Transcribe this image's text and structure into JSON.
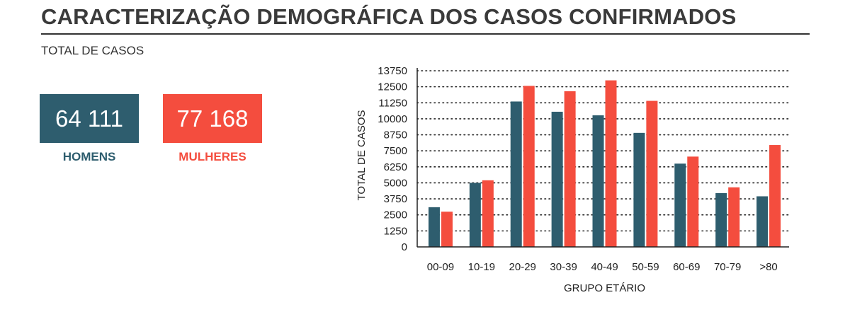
{
  "header": {
    "title": "CARACTERIZAÇÃO DEMOGRÁFICA DOS CASOS CONFIRMADOS",
    "subtitle": "TOTAL DE CASOS"
  },
  "totals": {
    "men": {
      "value": "64 111",
      "label": "HOMENS",
      "color": "#2e5d6e"
    },
    "women": {
      "value": "77 168",
      "label": "MULHERES",
      "color": "#f44d3e"
    }
  },
  "chart_data": {
    "type": "bar",
    "categories": [
      "00-09",
      "10-19",
      "20-29",
      "30-39",
      "40-49",
      "50-59",
      "60-69",
      "70-79",
      ">80"
    ],
    "series": [
      {
        "values": [
          3100,
          5000,
          11350,
          10550,
          10270,
          8900,
          6500,
          4200,
          3950
        ],
        "color": "#2e5d6e"
      },
      {
        "values": [
          2750,
          5200,
          12570,
          12150,
          13000,
          11400,
          7050,
          4650,
          7950
        ],
        "color": "#f44d3e"
      }
    ],
    "ylabel": "TOTAL DE CASOS",
    "xlabel": "GRUPO ETÁRIO",
    "yticks": [
      0,
      1250,
      2500,
      3750,
      5000,
      6250,
      7500,
      8750,
      10000,
      11250,
      12500,
      13750
    ],
    "ylim": [
      0,
      13750
    ],
    "grid": true,
    "grid_style": "dotted",
    "legend": "none"
  }
}
